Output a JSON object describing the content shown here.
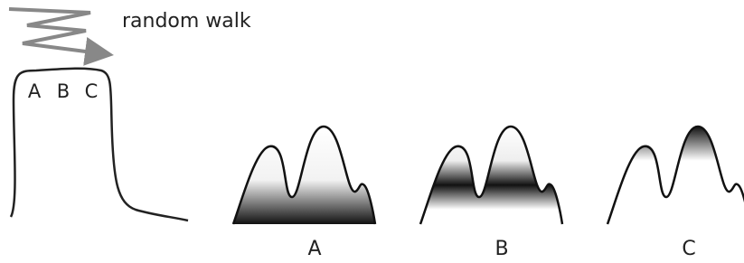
{
  "annotation": "random walk",
  "inner_labels": [
    "A",
    "B",
    "C"
  ],
  "panels": [
    {
      "label": "A"
    },
    {
      "label": "B"
    },
    {
      "label": "C"
    }
  ]
}
